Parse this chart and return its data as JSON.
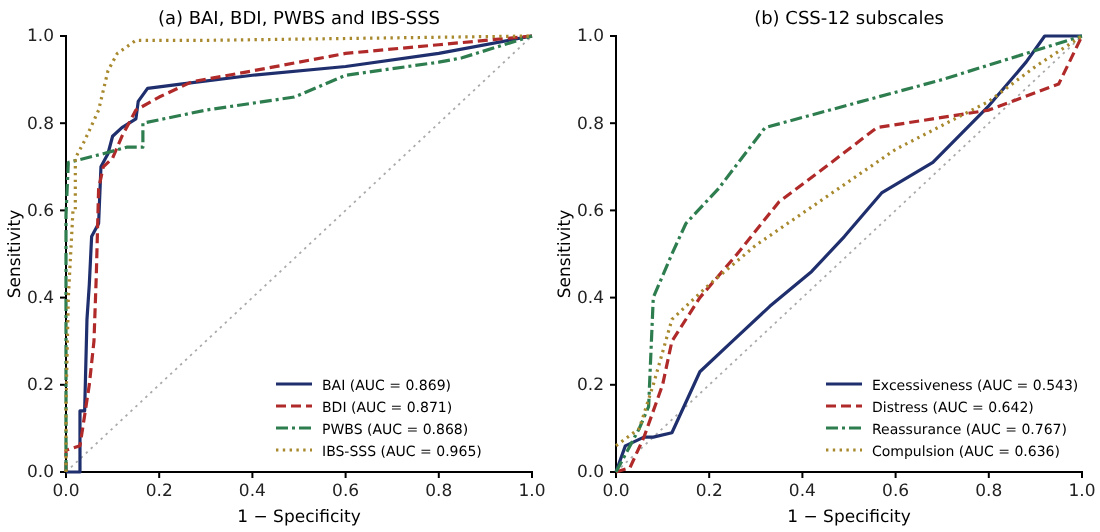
{
  "chart_data": [
    {
      "type": "line",
      "title": "(a) BAI, BDI, PWBS and IBS-SSS",
      "xlabel": "1 − Specificity",
      "ylabel": "Sensitivity",
      "xlim": [
        0,
        1
      ],
      "ylim": [
        0,
        1
      ],
      "xticks": [
        {
          "value": 0,
          "label": "0.0"
        },
        {
          "value": 0.2,
          "label": "0.2"
        },
        {
          "value": 0.4,
          "label": "0.4"
        },
        {
          "value": 0.6,
          "label": "0.6"
        },
        {
          "value": 0.8,
          "label": "0.8"
        },
        {
          "value": 1,
          "label": "1.0"
        }
      ],
      "yticks": [
        {
          "value": 0,
          "label": "0.0"
        },
        {
          "value": 0.2,
          "label": "0.2"
        },
        {
          "value": 0.4,
          "label": "0.4"
        },
        {
          "value": 0.6,
          "label": "0.6"
        },
        {
          "value": 0.8,
          "label": "0.8"
        },
        {
          "value": 1,
          "label": "1.0"
        }
      ],
      "grid": false,
      "legend": "bottom right",
      "marker": "none",
      "series": [
        {
          "color": "#aaaaaa",
          "line_style": "dotted",
          "x": [
            0,
            1
          ],
          "values": [
            0,
            1
          ]
        },
        {
          "name": "BAI (AUC = 0.869)",
          "color": "#1f2f6e",
          "line_style": "solid",
          "x": [
            0,
            0.03,
            0.03,
            0.03,
            0.04,
            0.045,
            0.05,
            0.055,
            0.07,
            0.075,
            0.09,
            0.1,
            0.12,
            0.15,
            0.155,
            0.175,
            0.25,
            0.4,
            0.6,
            0.8,
            1
          ],
          "values": [
            0,
            0,
            0.01,
            0.14,
            0.14,
            0.35,
            0.43,
            0.54,
            0.57,
            0.7,
            0.73,
            0.77,
            0.79,
            0.81,
            0.85,
            0.88,
            0.89,
            0.91,
            0.93,
            0.96,
            1
          ]
        },
        {
          "name": "BDI (AUC = 0.871)",
          "color": "#b02a2a",
          "line_style": "dashed",
          "x": [
            0,
            0,
            0.03,
            0.05,
            0.06,
            0.065,
            0.07,
            0.08,
            0.1,
            0.12,
            0.15,
            0.2,
            0.27,
            0.4,
            0.6,
            0.8,
            1
          ],
          "values": [
            0,
            0.05,
            0.06,
            0.2,
            0.3,
            0.45,
            0.65,
            0.7,
            0.72,
            0.77,
            0.83,
            0.86,
            0.895,
            0.92,
            0.96,
            0.98,
            1
          ]
        },
        {
          "name": "PWBS (AUC = 0.868)",
          "color": "#2e7d4f",
          "line_style": "dashdot",
          "x": [
            0,
            0,
            0.005,
            0.08,
            0.13,
            0.165,
            0.165,
            0.3,
            0.49,
            0.6,
            0.8,
            0.85,
            1
          ],
          "values": [
            0,
            0.59,
            0.71,
            0.73,
            0.745,
            0.745,
            0.8,
            0.83,
            0.86,
            0.91,
            0.94,
            0.95,
            1
          ]
        },
        {
          "name": "IBS-SSS (AUC = 0.965)",
          "color": "#a8892e",
          "line_style": "dotted",
          "x": [
            0,
            0,
            0.005,
            0.015,
            0.02,
            0.02,
            0.04,
            0.07,
            0.09,
            0.11,
            0.15,
            0.3,
            1
          ],
          "values": [
            0,
            0.15,
            0.4,
            0.6,
            0.6,
            0.72,
            0.76,
            0.83,
            0.92,
            0.96,
            0.99,
            0.99,
            1
          ]
        }
      ]
    },
    {
      "type": "line",
      "title": "(b) CSS-12 subscales",
      "xlabel": "1 − Specificity",
      "ylabel": "Sensitivity",
      "xlim": [
        0,
        1
      ],
      "ylim": [
        0,
        1
      ],
      "xticks": [
        {
          "value": 0,
          "label": "0.0"
        },
        {
          "value": 0.2,
          "label": "0.2"
        },
        {
          "value": 0.4,
          "label": "0.4"
        },
        {
          "value": 0.6,
          "label": "0.6"
        },
        {
          "value": 0.8,
          "label": "0.8"
        },
        {
          "value": 1,
          "label": "1.0"
        }
      ],
      "yticks": [
        {
          "value": 0,
          "label": "0.0"
        },
        {
          "value": 0.2,
          "label": "0.2"
        },
        {
          "value": 0.4,
          "label": "0.4"
        },
        {
          "value": 0.6,
          "label": "0.6"
        },
        {
          "value": 0.8,
          "label": "0.8"
        },
        {
          "value": 1,
          "label": "1.0"
        }
      ],
      "grid": false,
      "legend": "bottom right",
      "marker": "none",
      "series": [
        {
          "color": "#aaaaaa",
          "line_style": "dotted",
          "x": [
            0,
            1
          ],
          "values": [
            0,
            1
          ]
        },
        {
          "name": "Excessiveness (AUC = 0.543)",
          "color": "#1f2f6e",
          "line_style": "solid",
          "x": [
            0,
            0.02,
            0.06,
            0.08,
            0.12,
            0.18,
            0.25,
            0.33,
            0.42,
            0.49,
            0.57,
            0.68,
            0.8,
            0.88,
            0.92,
            1
          ],
          "values": [
            0,
            0.06,
            0.08,
            0.08,
            0.09,
            0.23,
            0.3,
            0.38,
            0.46,
            0.54,
            0.64,
            0.71,
            0.84,
            0.94,
            1,
            1
          ]
        },
        {
          "name": "Distress (AUC = 0.642)",
          "color": "#b02a2a",
          "line_style": "dashed",
          "x": [
            0,
            0.03,
            0.06,
            0.1,
            0.12,
            0.18,
            0.26,
            0.35,
            0.45,
            0.56,
            0.68,
            0.8,
            0.95,
            1
          ],
          "values": [
            0,
            0.01,
            0.08,
            0.2,
            0.3,
            0.4,
            0.5,
            0.62,
            0.7,
            0.79,
            0.81,
            0.83,
            0.89,
            1
          ]
        },
        {
          "name": "Reassurance (AUC = 0.767)",
          "color": "#2e7d4f",
          "line_style": "dashdot",
          "x": [
            0,
            0.05,
            0.07,
            0.08,
            0.12,
            0.15,
            0.22,
            0.32,
            0.7,
            1
          ],
          "values": [
            0,
            0.1,
            0.15,
            0.4,
            0.5,
            0.57,
            0.65,
            0.79,
            0.9,
            1
          ]
        },
        {
          "name": "Compulsion (AUC = 0.636)",
          "color": "#a8892e",
          "line_style": "dotted",
          "x": [
            0,
            0.05,
            0.08,
            0.12,
            0.2,
            0.3,
            0.45,
            0.6,
            0.8,
            0.9,
            1
          ],
          "values": [
            0.06,
            0.1,
            0.2,
            0.35,
            0.43,
            0.52,
            0.63,
            0.74,
            0.85,
            0.93,
            1
          ]
        }
      ]
    }
  ]
}
